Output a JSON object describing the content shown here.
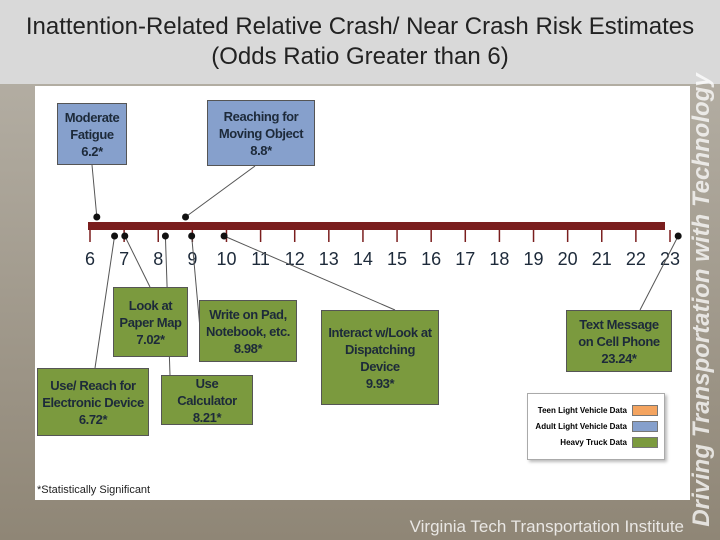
{
  "chart_data": {
    "type": "dot",
    "title": "Inattention-Related Relative Crash/ Near Crash Risk Estimates (Odds Ratio Greater than 6)",
    "categories": [
      "Moderate Fatigue",
      "Reaching for Moving Object",
      "Look at Paper Map",
      "Write on Pad, Notebook, etc.",
      "Use/ Reach for Electronic Device",
      "Use Calculator",
      "Interact w/Look at Dispatching Device",
      "Text Message on Cell Phone"
    ],
    "series": [
      {
        "name": "Teen Light Vehicle Data",
        "color": "#f4a460",
        "values": [
          null,
          null,
          null,
          null,
          null,
          null,
          null,
          null
        ],
        "value_labels": [
          null,
          null,
          null,
          null,
          null,
          null,
          null,
          null
        ]
      },
      {
        "name": "Adult Light Vehicle Data",
        "color": "#86a0cc",
        "values": [
          6.2,
          8.8,
          null,
          null,
          null,
          null,
          null,
          null
        ],
        "value_labels": [
          "6.2*",
          "8.8*",
          null,
          null,
          null,
          null,
          null,
          null
        ]
      },
      {
        "name": "Heavy Truck Data",
        "color": "#7b9a3e",
        "values": [
          null,
          null,
          7.02,
          8.98,
          6.72,
          8.21,
          9.93,
          23.24
        ],
        "value_labels": [
          null,
          null,
          "7.02*",
          "8.98*",
          "6.72*",
          "8.21*",
          "9.93*",
          "23.24*"
        ]
      }
    ],
    "xlim": [
      6,
      23
    ],
    "xticks": [
      6,
      7,
      8,
      9,
      10,
      11,
      12,
      13,
      14,
      15,
      16,
      17,
      18,
      19,
      20,
      21,
      22,
      23
    ],
    "note": "*Statistically Significant",
    "side_text": "Driving Transportation with Technology",
    "footer": "Virginia Tech Transportation Institute"
  }
}
